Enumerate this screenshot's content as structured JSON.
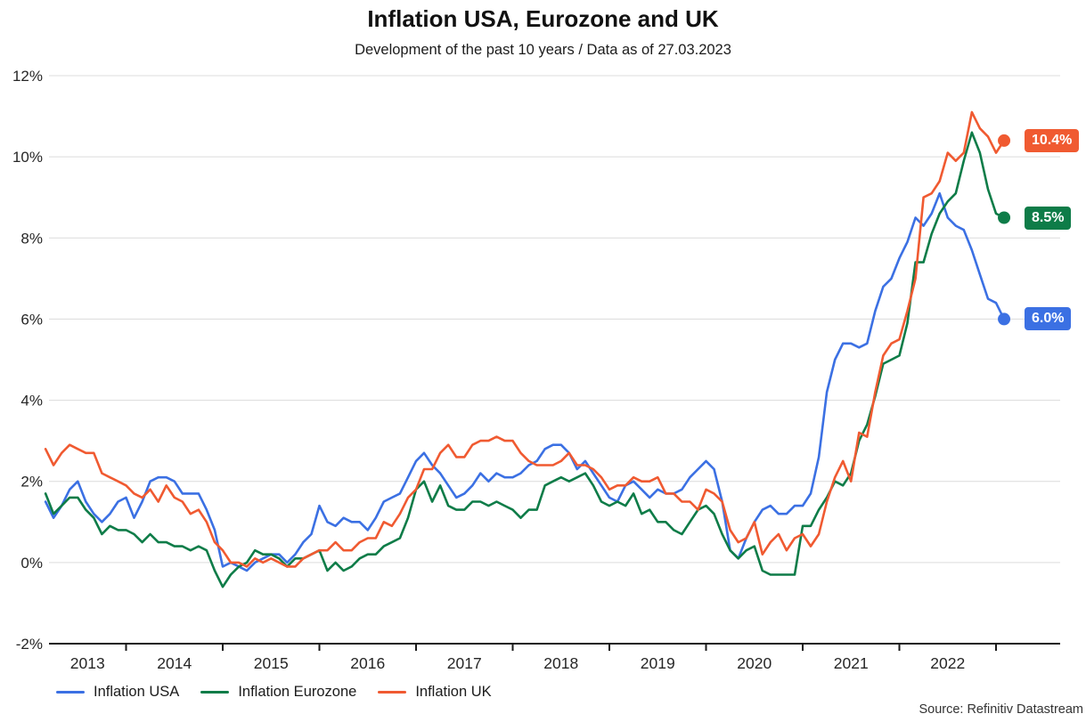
{
  "source_note": "Source: Refinitiv Datastream",
  "chart_data": {
    "type": "line",
    "title": "Inflation USA, Eurozone and UK",
    "subtitle": "Development of the past 10 years / Data as of 27.03.2023",
    "x_unit": "month",
    "x_start": "2013-03",
    "x_end": "2023-02",
    "ylim": [
      -2,
      12
    ],
    "grid": true,
    "legend_position": "bottom",
    "yticks": [
      {
        "label": "12%",
        "value": 12
      },
      {
        "label": "10%",
        "value": 10
      },
      {
        "label": "8%",
        "value": 8
      },
      {
        "label": "6%",
        "value": 6
      },
      {
        "label": "4%",
        "value": 4
      },
      {
        "label": "2%",
        "value": 2
      },
      {
        "label": "0%",
        "value": 0
      },
      {
        "label": "-2%",
        "value": -2
      }
    ],
    "xticks": [
      "2013",
      "2014",
      "2015",
      "2016",
      "2017",
      "2018",
      "2019",
      "2020",
      "2021",
      "2022"
    ],
    "series": [
      {
        "name": "Inflation USA",
        "color": "#3b70e3",
        "end_label": "6.0%",
        "values": [
          1.5,
          1.1,
          1.4,
          1.8,
          2.0,
          1.5,
          1.2,
          1.0,
          1.2,
          1.5,
          1.6,
          1.1,
          1.5,
          2.0,
          2.1,
          2.1,
          2.0,
          1.7,
          1.7,
          1.7,
          1.3,
          0.8,
          -0.1,
          0.0,
          -0.1,
          -0.2,
          0.0,
          0.1,
          0.2,
          0.2,
          0.0,
          0.2,
          0.5,
          0.7,
          1.4,
          1.0,
          0.9,
          1.1,
          1.0,
          1.0,
          0.8,
          1.1,
          1.5,
          1.6,
          1.7,
          2.1,
          2.5,
          2.7,
          2.4,
          2.2,
          1.9,
          1.6,
          1.7,
          1.9,
          2.2,
          2.0,
          2.2,
          2.1,
          2.1,
          2.2,
          2.4,
          2.5,
          2.8,
          2.9,
          2.9,
          2.7,
          2.3,
          2.5,
          2.2,
          1.9,
          1.6,
          1.5,
          1.9,
          2.0,
          1.8,
          1.6,
          1.8,
          1.7,
          1.7,
          1.8,
          2.1,
          2.3,
          2.5,
          2.3,
          1.5,
          0.3,
          0.1,
          0.6,
          1.0,
          1.3,
          1.4,
          1.2,
          1.2,
          1.4,
          1.4,
          1.7,
          2.6,
          4.2,
          5.0,
          5.4,
          5.4,
          5.3,
          5.4,
          6.2,
          6.8,
          7.0,
          7.5,
          7.9,
          8.5,
          8.3,
          8.6,
          9.1,
          8.5,
          8.3,
          8.2,
          7.7,
          7.1,
          6.5,
          6.4,
          6.0
        ]
      },
      {
        "name": "Inflation Eurozone",
        "color": "#0e7c48",
        "end_label": "8.5%",
        "values": [
          1.7,
          1.2,
          1.4,
          1.6,
          1.6,
          1.3,
          1.1,
          0.7,
          0.9,
          0.8,
          0.8,
          0.7,
          0.5,
          0.7,
          0.5,
          0.5,
          0.4,
          0.4,
          0.3,
          0.4,
          0.3,
          -0.2,
          -0.6,
          -0.3,
          -0.1,
          0.0,
          0.3,
          0.2,
          0.2,
          0.1,
          -0.1,
          0.1,
          0.1,
          0.2,
          0.3,
          -0.2,
          0.0,
          -0.2,
          -0.1,
          0.1,
          0.2,
          0.2,
          0.4,
          0.5,
          0.6,
          1.1,
          1.8,
          2.0,
          1.5,
          1.9,
          1.4,
          1.3,
          1.3,
          1.5,
          1.5,
          1.4,
          1.5,
          1.4,
          1.3,
          1.1,
          1.3,
          1.3,
          1.9,
          2.0,
          2.1,
          2.0,
          2.1,
          2.2,
          1.9,
          1.5,
          1.4,
          1.5,
          1.4,
          1.7,
          1.2,
          1.3,
          1.0,
          1.0,
          0.8,
          0.7,
          1.0,
          1.3,
          1.4,
          1.2,
          0.7,
          0.3,
          0.1,
          0.3,
          0.4,
          -0.2,
          -0.3,
          -0.3,
          -0.3,
          -0.3,
          0.9,
          0.9,
          1.3,
          1.6,
          2.0,
          1.9,
          2.2,
          3.0,
          3.4,
          4.1,
          4.9,
          5.0,
          5.1,
          5.9,
          7.4,
          7.4,
          8.1,
          8.6,
          8.9,
          9.1,
          9.9,
          10.6,
          10.1,
          9.2,
          8.6,
          8.5
        ]
      },
      {
        "name": "Inflation UK",
        "color": "#f05a31",
        "end_label": "10.4%",
        "values": [
          2.8,
          2.4,
          2.7,
          2.9,
          2.8,
          2.7,
          2.7,
          2.2,
          2.1,
          2.0,
          1.9,
          1.7,
          1.6,
          1.8,
          1.5,
          1.9,
          1.6,
          1.5,
          1.2,
          1.3,
          1.0,
          0.5,
          0.3,
          0.0,
          0.0,
          -0.1,
          0.1,
          0.0,
          0.1,
          0.0,
          -0.1,
          -0.1,
          0.1,
          0.2,
          0.3,
          0.3,
          0.5,
          0.3,
          0.3,
          0.5,
          0.6,
          0.6,
          1.0,
          0.9,
          1.2,
          1.6,
          1.8,
          2.3,
          2.3,
          2.7,
          2.9,
          2.6,
          2.6,
          2.9,
          3.0,
          3.0,
          3.1,
          3.0,
          3.0,
          2.7,
          2.5,
          2.4,
          2.4,
          2.4,
          2.5,
          2.7,
          2.4,
          2.4,
          2.3,
          2.1,
          1.8,
          1.9,
          1.9,
          2.1,
          2.0,
          2.0,
          2.1,
          1.7,
          1.7,
          1.5,
          1.5,
          1.3,
          1.8,
          1.7,
          1.5,
          0.8,
          0.5,
          0.6,
          1.0,
          0.2,
          0.5,
          0.7,
          0.3,
          0.6,
          0.7,
          0.4,
          0.7,
          1.5,
          2.1,
          2.5,
          2.0,
          3.2,
          3.1,
          4.2,
          5.1,
          5.4,
          5.5,
          6.2,
          7.0,
          9.0,
          9.1,
          9.4,
          10.1,
          9.9,
          10.1,
          11.1,
          10.7,
          10.5,
          10.1,
          10.4
        ]
      }
    ]
  }
}
